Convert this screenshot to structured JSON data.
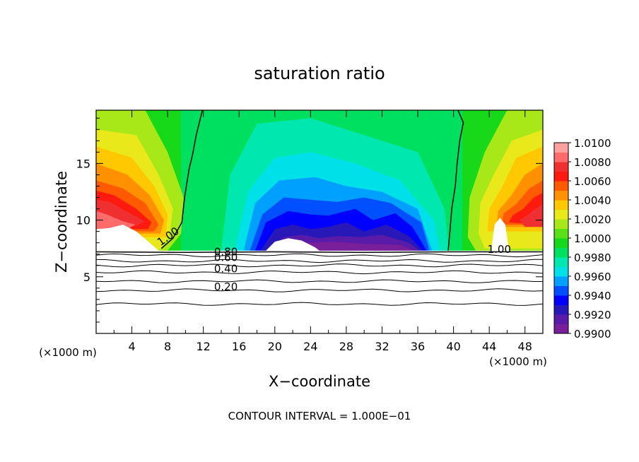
{
  "chart_data": {
    "type": "heatmap",
    "title": "saturation ratio",
    "xlabel": "X−coordinate",
    "ylabel": "Z−coordinate",
    "x_unit": "(×1000 m)",
    "y_unit": "(×1000 m)",
    "xlim": [
      0,
      50
    ],
    "ylim": [
      0,
      19.7
    ],
    "x_ticks": [
      4,
      8,
      12,
      16,
      20,
      24,
      28,
      32,
      36,
      40,
      44,
      48
    ],
    "y_ticks": [
      5,
      10,
      15
    ],
    "footer": "CONTOUR INTERVAL = 1.000E−01",
    "colorbar": {
      "ticks": [
        "1.0100",
        "1.0080",
        "1.0060",
        "1.0040",
        "1.0020",
        "1.0000",
        "0.9980",
        "0.9960",
        "0.9940",
        "0.9920",
        "0.9900"
      ],
      "colors": [
        "#7a1f9a",
        "#5a1ca8",
        "#2818b8",
        "#0000ff",
        "#0050ff",
        "#00a0ff",
        "#00e0e8",
        "#00e8b0",
        "#00e060",
        "#18d81a",
        "#58e018",
        "#a8e818",
        "#e8e81a",
        "#ffc800",
        "#ff9000",
        "#ff5a00",
        "#ff1a10",
        "#f03030",
        "#ff6a6a",
        "#ffa0a0"
      ]
    },
    "contour_labels": [
      {
        "text": "1.00",
        "x": 7.2,
        "y": 7.7,
        "rotate": -35
      },
      {
        "text": "1.00",
        "x": 43.8,
        "y": 7.1,
        "rotate": 0
      },
      {
        "text": "0.80",
        "x": 13.2,
        "y": 6.9,
        "rotate": 0
      },
      {
        "text": "0.60",
        "x": 13.2,
        "y": 6.4,
        "rotate": 0
      },
      {
        "text": "0.40",
        "x": 13.2,
        "y": 5.4,
        "rotate": 0
      },
      {
        "text": "0.20",
        "x": 13.2,
        "y": 3.8,
        "rotate": 0
      }
    ]
  }
}
